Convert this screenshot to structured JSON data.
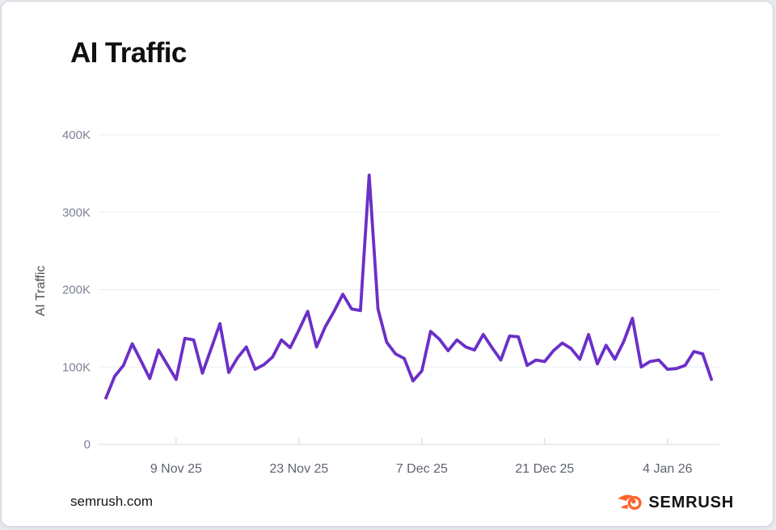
{
  "header": {
    "title": "AI Traffic"
  },
  "footer": {
    "site": "semrush.com",
    "brand": "SEMRUSH"
  },
  "colors": {
    "line": "#6b2fc7",
    "brand_orange": "#ff642d",
    "grid": "#ecedf2",
    "axis": "#d8dbe2"
  },
  "chart_data": {
    "type": "line",
    "title": "AI Traffic",
    "xlabel": "",
    "ylabel": "AI Traffic",
    "unit": "thousands of visits",
    "ylim": [
      0,
      400
    ],
    "grid": "horizontal",
    "legend": "none",
    "yticks": [
      {
        "label": "0",
        "value": 0
      },
      {
        "label": "100K",
        "value": 100
      },
      {
        "label": "200K",
        "value": 200
      },
      {
        "label": "300K",
        "value": 300
      },
      {
        "label": "400K",
        "value": 400
      }
    ],
    "xticks": [
      {
        "label": "9 Nov 25",
        "day": 8
      },
      {
        "label": "23 Nov 25",
        "day": 22
      },
      {
        "label": "7 Dec 25",
        "day": 36
      },
      {
        "label": "21 Dec 25",
        "day": 50
      },
      {
        "label": "4 Jan 26",
        "day": 64
      }
    ],
    "series": [
      {
        "name": "AI Traffic",
        "color": "#6b2fc7",
        "dates": [
          "2025-11-01",
          "2025-11-02",
          "2025-11-03",
          "2025-11-04",
          "2025-11-05",
          "2025-11-06",
          "2025-11-07",
          "2025-11-08",
          "2025-11-09",
          "2025-11-10",
          "2025-11-11",
          "2025-11-12",
          "2025-11-13",
          "2025-11-14",
          "2025-11-15",
          "2025-11-16",
          "2025-11-17",
          "2025-11-18",
          "2025-11-19",
          "2025-11-20",
          "2025-11-21",
          "2025-11-22",
          "2025-11-23",
          "2025-11-24",
          "2025-11-25",
          "2025-11-26",
          "2025-11-27",
          "2025-11-28",
          "2025-11-29",
          "2025-11-30",
          "2025-12-01",
          "2025-12-02",
          "2025-12-03",
          "2025-12-04",
          "2025-12-05",
          "2025-12-06",
          "2025-12-07",
          "2025-12-08",
          "2025-12-09",
          "2025-12-10",
          "2025-12-11",
          "2025-12-12",
          "2025-12-13",
          "2025-12-14",
          "2025-12-15",
          "2025-12-16",
          "2025-12-17",
          "2025-12-18",
          "2025-12-19",
          "2025-12-20",
          "2025-12-21",
          "2025-12-22",
          "2025-12-23",
          "2025-12-24",
          "2025-12-25",
          "2025-12-26",
          "2025-12-27",
          "2025-12-28",
          "2025-12-29",
          "2025-12-30",
          "2025-12-31",
          "2026-01-01",
          "2026-01-02",
          "2026-01-03",
          "2026-01-04",
          "2026-01-05",
          "2026-01-06",
          "2026-01-07",
          "2026-01-08",
          "2026-01-09"
        ],
        "values_k": [
          60,
          88,
          102,
          130,
          108,
          85,
          122,
          103,
          84,
          137,
          135,
          92,
          124,
          156,
          93,
          112,
          126,
          97,
          103,
          113,
          135,
          125,
          148,
          172,
          126,
          152,
          172,
          194,
          175,
          173,
          348,
          175,
          132,
          117,
          111,
          82,
          95,
          146,
          136,
          121,
          135,
          126,
          122,
          142,
          125,
          109,
          140,
          139,
          102,
          109,
          107,
          121,
          131,
          124,
          110,
          142,
          104,
          128,
          110,
          133,
          163,
          100,
          107,
          109,
          97,
          98,
          102,
          120,
          117,
          84
        ]
      }
    ]
  }
}
